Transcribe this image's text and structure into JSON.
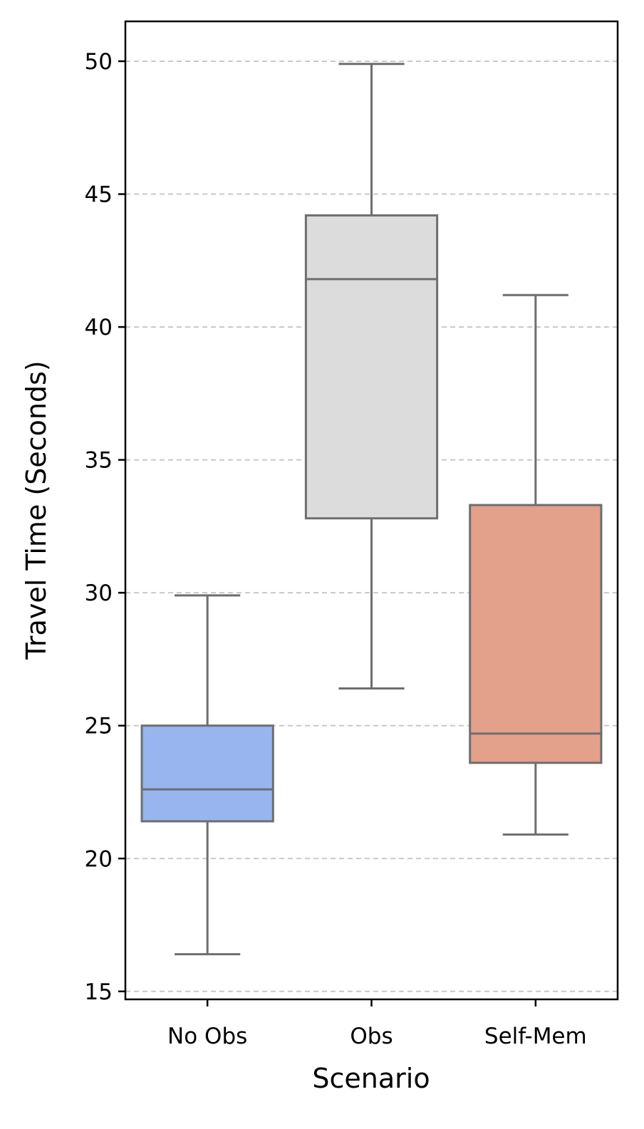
{
  "chart_data": {
    "type": "box",
    "title": "",
    "xlabel": "Scenario",
    "ylabel": "Travel Time (Seconds)",
    "ylim": [
      14.7,
      51.5
    ],
    "yticks": [
      15,
      20,
      25,
      30,
      35,
      40,
      45,
      50
    ],
    "grid": "y-dashed",
    "categories": [
      "No Obs",
      "Obs",
      "Self-Mem"
    ],
    "boxes": [
      {
        "category": "No Obs",
        "whisker_low": 16.4,
        "q1": 21.4,
        "median": 22.6,
        "q3": 25.0,
        "whisker_high": 29.9,
        "color": "#98b5f0"
      },
      {
        "category": "Obs",
        "whisker_low": 26.4,
        "q1": 32.8,
        "median": 41.8,
        "q3": 44.2,
        "whisker_high": 49.9,
        "color": "#dcdcdc"
      },
      {
        "category": "Self-Mem",
        "whisker_low": 20.9,
        "q1": 23.6,
        "median": 24.7,
        "q3": 33.3,
        "whisker_high": 41.2,
        "color": "#e3a08b"
      }
    ],
    "line_color": "#6e6e6e",
    "grid_color": "#c8c8c8"
  }
}
